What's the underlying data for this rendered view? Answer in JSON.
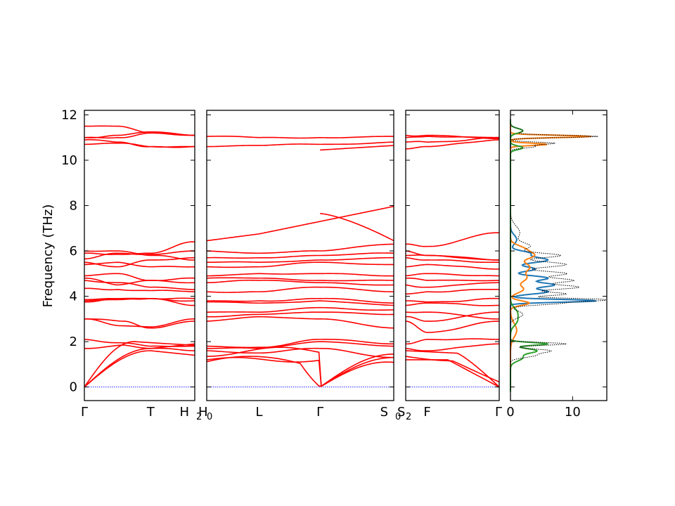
{
  "chart_data": {
    "type": "line",
    "ylabel": "Frequency (THz)",
    "ylim": [
      -0.6,
      12.2
    ],
    "yticks": [
      "0",
      "2",
      "4",
      "6",
      "8",
      "10",
      "12"
    ],
    "panels": [
      {
        "id": "p1",
        "kpoints": [
          {
            "x": 0.0,
            "label": "Γ"
          },
          {
            "x": 0.6,
            "label": "T"
          },
          {
            "x": 1.0,
            "label": "H",
            "sub": "2"
          }
        ]
      },
      {
        "id": "p2",
        "kpoints": [
          {
            "x": 0.0,
            "label": "H",
            "sub": "0"
          },
          {
            "x": 0.28,
            "label": "L"
          },
          {
            "x": 0.606,
            "label": "Γ"
          },
          {
            "x": 1.0,
            "label": "S",
            "sub": "0"
          }
        ]
      },
      {
        "id": "p3",
        "kpoints": [
          {
            "x": 0.0,
            "label": "S",
            "sub": "2"
          },
          {
            "x": 0.23,
            "label": "F"
          },
          {
            "x": 1.0,
            "label": "Γ"
          }
        ]
      }
    ],
    "dos": {
      "xlim": [
        0,
        15.5
      ],
      "xticks": [
        "0",
        "10"
      ]
    }
  }
}
